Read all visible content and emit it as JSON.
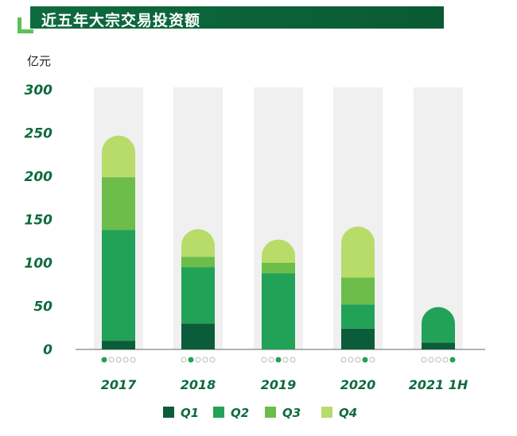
{
  "header": {
    "title": "近五年大宗交易投资额"
  },
  "chart_data": {
    "type": "bar",
    "stacked": true,
    "unit_label": "亿元",
    "categories": [
      "2017",
      "2018",
      "2019",
      "2020",
      "2021 1H"
    ],
    "series": [
      {
        "name": "Q1",
        "color": "#0b5c3a",
        "values": [
          10,
          30,
          0,
          24,
          8
        ]
      },
      {
        "name": "Q2",
        "color": "#21a257",
        "values": [
          128,
          65,
          88,
          28,
          41
        ]
      },
      {
        "name": "Q3",
        "color": "#6cbd4a",
        "values": [
          61,
          12,
          12,
          31,
          0
        ]
      },
      {
        "name": "Q4",
        "color": "#b8dc6a",
        "values": [
          48,
          32,
          27,
          59,
          0
        ]
      }
    ],
    "yticks": [
      0,
      50,
      100,
      150,
      200,
      250,
      300
    ],
    "ylim": [
      0,
      300
    ],
    "grid": false,
    "legend_position": "bottom"
  }
}
